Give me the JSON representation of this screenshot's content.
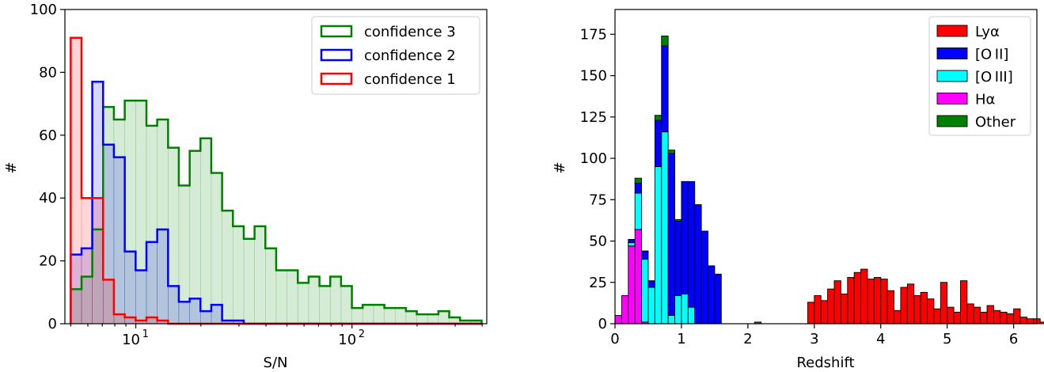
{
  "chart_data": [
    {
      "type": "histogram",
      "xscale": "log",
      "xlabel": "S/N",
      "ylabel": "#",
      "xlim": [
        4.7,
        420
      ],
      "ylim": [
        0,
        100
      ],
      "xticks": [
        {
          "value": 10,
          "base": "10",
          "exp": "1"
        },
        {
          "value": 100,
          "base": "10",
          "exp": "2"
        }
      ],
      "yticks": [
        0,
        20,
        40,
        60,
        80,
        100
      ],
      "legend_position": "top-right",
      "bin_edges": [
        5,
        5.61,
        6.29,
        7.06,
        7.92,
        8.89,
        9.98,
        11.2,
        12.56,
        14.1,
        15.81,
        17.75,
        19.91,
        22.34,
        25.07,
        28.13,
        31.57,
        35.42,
        39.74,
        44.59,
        50.04,
        56.14,
        62.99,
        70.68,
        79.31,
        88.99,
        99.85,
        112.0,
        125.7,
        141.1,
        158.3,
        177.6,
        199.3,
        223.6,
        250.9,
        281.5,
        315.9,
        354.5,
        397.8
      ],
      "series": [
        {
          "name": "confidence 3",
          "color": "#008000",
          "values": [
            11,
            15,
            30,
            69,
            65,
            71,
            71,
            63,
            65,
            56,
            44,
            55,
            59,
            48,
            36,
            31,
            27,
            31,
            24,
            17,
            17,
            13,
            15,
            12,
            15,
            12,
            5,
            6,
            6,
            5,
            5,
            4,
            3,
            3,
            4,
            2,
            1,
            1
          ]
        },
        {
          "name": "confidence 2",
          "color": "#0000ff",
          "values": [
            22,
            24,
            77,
            57,
            53,
            23,
            17,
            26,
            30,
            12,
            7,
            8,
            4,
            6,
            1,
            1,
            0,
            0,
            0,
            0,
            0,
            0,
            0,
            0,
            0,
            0,
            0,
            0,
            0,
            0,
            0,
            0,
            0,
            0,
            0,
            0,
            0,
            0
          ]
        },
        {
          "name": "confidence 1",
          "color": "#ff0000",
          "values": [
            91,
            40,
            40,
            14,
            3,
            2,
            1,
            2,
            1,
            0,
            0,
            0,
            0,
            0,
            0,
            0,
            0,
            0,
            0,
            0,
            0,
            0,
            0,
            0,
            0,
            0,
            0,
            0,
            0,
            0,
            0,
            0,
            0,
            0,
            0,
            0,
            0,
            0
          ]
        }
      ]
    },
    {
      "type": "stacked-histogram",
      "xlabel": "Redshift",
      "ylabel": "#",
      "xlim": [
        0,
        6.35
      ],
      "ylim": [
        0,
        190
      ],
      "xticks": [
        0,
        1,
        2,
        3,
        4,
        5,
        6
      ],
      "yticks": [
        0,
        25,
        50,
        75,
        100,
        125,
        150,
        175
      ],
      "legend_position": "top-right",
      "bin_width": 0.1,
      "bin_start": 0,
      "series": [
        {
          "name": "Lyα",
          "color": "#ff0000",
          "values": [
            0,
            0,
            0,
            0,
            0,
            0,
            0,
            0,
            0,
            0,
            0,
            0,
            0,
            0,
            0,
            0,
            0,
            0,
            0,
            0,
            0,
            0,
            0,
            0,
            0,
            0,
            0,
            0,
            0,
            13,
            17,
            14,
            21,
            26,
            18,
            28,
            31,
            33,
            27,
            28,
            27,
            20,
            8,
            22,
            24,
            17,
            19,
            15,
            9,
            25,
            10,
            7,
            26,
            12,
            10,
            7,
            11,
            8,
            7,
            6,
            9,
            4,
            3,
            3,
            1
          ]
        },
        {
          "name": "[O II]",
          "color": "#0000ff",
          "values": [
            0,
            0,
            2,
            6,
            5,
            4,
            28,
            52,
            98,
            45,
            68,
            76,
            72,
            56,
            35,
            30,
            0,
            0,
            0,
            0,
            0,
            0,
            0,
            0,
            0,
            0,
            0,
            0,
            0,
            0,
            0,
            0,
            0,
            0,
            0,
            0,
            0,
            0,
            0,
            0,
            0,
            0,
            0,
            0,
            0,
            0,
            0,
            0,
            0,
            0,
            0,
            0,
            0,
            0,
            0,
            0,
            0,
            0,
            0,
            0,
            0,
            0,
            0,
            0,
            0
          ]
        },
        {
          "name": "[O III]",
          "color": "#00ffff",
          "values": [
            0,
            0,
            2,
            22,
            38,
            22,
            95,
            116,
            5,
            17,
            18,
            10,
            0,
            0,
            0,
            0,
            0,
            0,
            0,
            0,
            0,
            0,
            0,
            0,
            0,
            0,
            0,
            0,
            0,
            0,
            0,
            0,
            0,
            0,
            0,
            0,
            0,
            0,
            0,
            0,
            0,
            0,
            0,
            0,
            0,
            0,
            0,
            0,
            0,
            0,
            0,
            0,
            0,
            0,
            0,
            0,
            0,
            0,
            0,
            0,
            0,
            0,
            0,
            0,
            0
          ]
        },
        {
          "name": "Hα",
          "color": "#ff00ff",
          "values": [
            5,
            17,
            47,
            57,
            1,
            0,
            0,
            0,
            0,
            0,
            0,
            0,
            0,
            0,
            0,
            0,
            0,
            0,
            0,
            0,
            0,
            0,
            0,
            0,
            0,
            0,
            0,
            0,
            0,
            0,
            0,
            0,
            0,
            0,
            0,
            0,
            0,
            0,
            0,
            0,
            0,
            0,
            0,
            0,
            0,
            0,
            0,
            0,
            0,
            0,
            0,
            0,
            0,
            0,
            0,
            0,
            0,
            0,
            0,
            0,
            0,
            0,
            0,
            0,
            0
          ]
        },
        {
          "name": "Other",
          "color": "#008000",
          "values": [
            0,
            0,
            0,
            3,
            0,
            0,
            3,
            6,
            2,
            1,
            0,
            0,
            0,
            0,
            0,
            0,
            0,
            0,
            0,
            0,
            0,
            1,
            0,
            0,
            0,
            0,
            0,
            0,
            0,
            0,
            0,
            0,
            0,
            0,
            0,
            0,
            0,
            0,
            0,
            0,
            0,
            0,
            0,
            0,
            0,
            0,
            0,
            0,
            0,
            0,
            0,
            0,
            0,
            0,
            0,
            0,
            0,
            0,
            0,
            0,
            0,
            0,
            0,
            0,
            0
          ]
        }
      ]
    }
  ]
}
